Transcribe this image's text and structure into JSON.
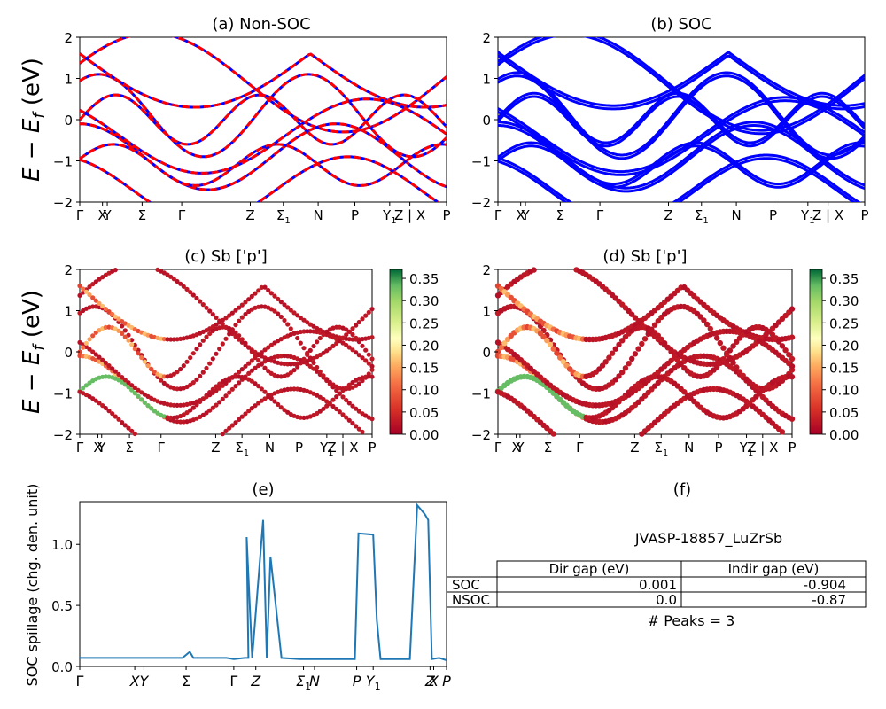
{
  "figure_id": "JVASP-18857_LuZrSb",
  "colors": {
    "red": "#ff0000",
    "blue": "#0000ff",
    "spillage": "#1f77b4"
  },
  "band_ylabel": "E − E_f (eV)",
  "k_labels": [
    "Γ",
    "X",
    "Y",
    "Σ",
    "Γ",
    "Z",
    "Σ1",
    "N",
    "P",
    "Y1",
    "Z | X",
    "P"
  ],
  "chart_data": [
    {
      "id": "a",
      "type": "line",
      "title": "(a) Non-SOC",
      "ylabel": "E − E_f (eV)",
      "ylim": [
        -2,
        2
      ],
      "yticks": [
        "2",
        "1",
        "0",
        "−1",
        "−2"
      ],
      "legend": "none",
      "series": [
        {
          "color": "#0000ff",
          "dashed": false,
          "values": "band structure (solid blue)"
        },
        {
          "color": "#ff0000",
          "dashed": true,
          "values": "band structure (dashed red overlay)"
        }
      ]
    },
    {
      "id": "b",
      "type": "line",
      "title": "(b) SOC",
      "ylim": [
        -2,
        2
      ],
      "yticks": [
        "2",
        "1",
        "0",
        "−1",
        "−2"
      ],
      "series": [
        {
          "color": "#0000ff"
        }
      ]
    },
    {
      "id": "c",
      "type": "scatter",
      "title": "(c)  Sb ['p']",
      "ylabel": "E − E_f (eV)",
      "ylim": [
        -2,
        2
      ],
      "yticks": [
        "2",
        "1",
        "0",
        "−1",
        "−2"
      ],
      "colorbar": {
        "ticks": [
          "0.35",
          "0.30",
          "0.25",
          "0.20",
          "0.15",
          "0.10",
          "0.05",
          "0.00"
        ],
        "range": [
          0,
          0.37
        ],
        "colormap": "RdYlGn"
      }
    },
    {
      "id": "d",
      "type": "scatter",
      "title": "(d) Sb ['p']",
      "ylim": [
        -2,
        2
      ],
      "yticks": [
        "2",
        "1",
        "0",
        "−1",
        "−2"
      ],
      "colorbar": {
        "ticks": [
          "0.35",
          "0.30",
          "0.25",
          "0.20",
          "0.15",
          "0.10",
          "0.05",
          "0.00"
        ],
        "range": [
          0,
          0.37
        ],
        "colormap": "RdYlGn"
      }
    },
    {
      "id": "e",
      "type": "line",
      "title": "(e)",
      "ylabel": "SOC spillage (chg. den. unit)",
      "ylim": [
        0,
        1.35
      ],
      "yticks": [
        "1.0",
        "0.5",
        "0.0"
      ],
      "xticks": [
        "Γ",
        "X",
        "Y",
        "Σ",
        "Γ",
        "Z",
        "Σ1",
        "N",
        "P",
        "Y1",
        "Z",
        "X",
        "P"
      ],
      "x": [
        0,
        0.15,
        0.17,
        0.2,
        0.21,
        0.25,
        0.28,
        0.3,
        0.31,
        0.35,
        0.4,
        0.42,
        0.45,
        0.46,
        0.455,
        0.47,
        0.5,
        0.51,
        0.52,
        0.55,
        0.6,
        0.75,
        0.76,
        0.8,
        0.81,
        0.82,
        0.83,
        0.84,
        0.87,
        0.9,
        0.92,
        0.94,
        0.95,
        0.96,
        0.98,
        1.0
      ],
      "values": [
        0.07,
        0.07,
        0.07,
        0.07,
        0.07,
        0.07,
        0.07,
        0.12,
        0.07,
        0.07,
        0.07,
        0.06,
        0.07,
        0.07,
        1.06,
        0.07,
        1.2,
        0.07,
        0.9,
        0.07,
        0.06,
        0.06,
        1.09,
        1.08,
        0.38,
        0.06,
        0.06,
        0.06,
        0.06,
        0.06,
        1.32,
        1.25,
        1.2,
        0.06,
        0.07,
        0.05
      ],
      "series": [
        {
          "color": "#1f77b4"
        }
      ]
    }
  ],
  "table_panel": {
    "title": "(f)",
    "caption": "JVASP-18857_LuZrSb",
    "columns": [
      "",
      "Dir gap (eV)",
      "Indir gap (eV)"
    ],
    "rows": [
      [
        "SOC",
        "0.001",
        "-0.904"
      ],
      [
        "NSOC",
        "0.0",
        "-0.87"
      ]
    ],
    "peaks": "# Peaks = 3"
  }
}
